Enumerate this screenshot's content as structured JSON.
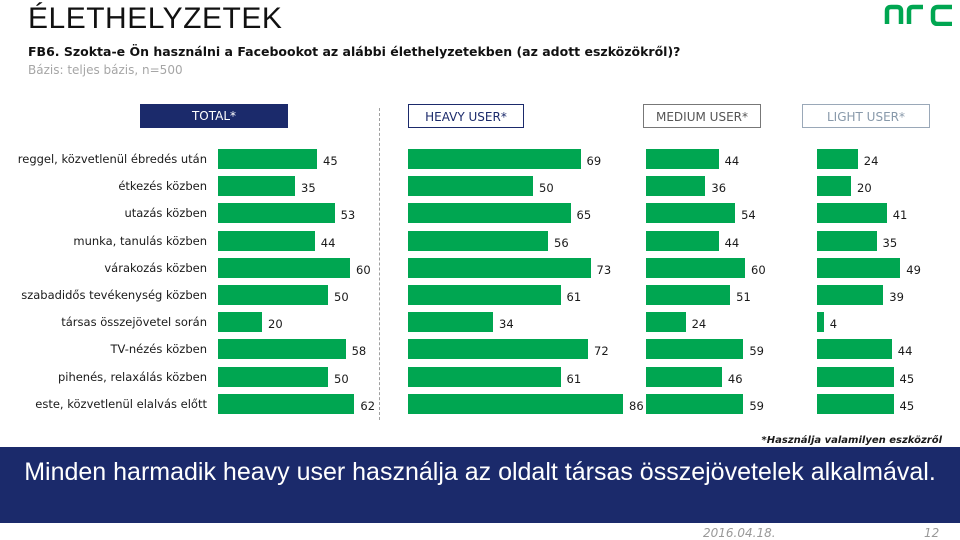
{
  "page": {
    "title": "ÉLETHELYZETEK",
    "question": "FB6.  Szokta-e Ön használni a Facebookot az alábbi élethelyzetekben (az adott eszközökről)?",
    "base": "Bázis: teljes bázis, n=500",
    "footnote": "*Használja valamilyen eszközről",
    "banner": "Minden harmadik heavy user használja az oldalt társas összejövetelek alkalmával.",
    "date": "2016.04.18.",
    "page_number": "12"
  },
  "colors": {
    "bar": "#00a651",
    "banner_bg": "#1b2a6b",
    "logo": "#00a651"
  },
  "chart_data": {
    "type": "bar",
    "orientation": "horizontal",
    "unit": "%",
    "categories": [
      "reggel, közvetlenül ébredés után",
      "étkezés közben",
      "utazás közben",
      "munka, tanulás közben",
      "várakozás közben",
      "szabadidős tevékenység közben",
      "társas összejövetel során",
      "TV-nézés közben",
      "pihenés, relaxálás közben",
      "este, közvetlenül elalvás előtt"
    ],
    "series": [
      {
        "name": "TOTAL*",
        "values": [
          45,
          35,
          53,
          44,
          60,
          50,
          20,
          58,
          50,
          62
        ]
      },
      {
        "name": "HEAVY USER*",
        "values": [
          69,
          50,
          65,
          56,
          73,
          61,
          34,
          72,
          61,
          86
        ]
      },
      {
        "name": "MEDIUM USER*",
        "values": [
          44,
          36,
          54,
          44,
          60,
          51,
          24,
          59,
          46,
          59
        ]
      },
      {
        "name": "LIGHT USER*",
        "values": [
          24,
          20,
          41,
          35,
          49,
          39,
          4,
          44,
          45,
          45
        ]
      }
    ]
  }
}
